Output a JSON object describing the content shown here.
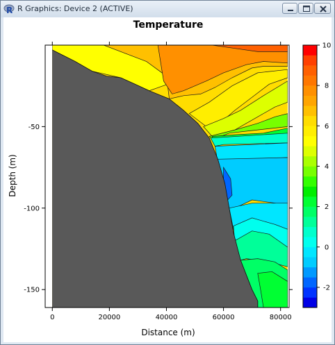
{
  "window": {
    "title": "R Graphics: Device 2 (ACTIVE)",
    "icons": {
      "app": "r-logo-icon",
      "minimize": "minimize-icon",
      "maximize": "maximize-icon",
      "close": "close-icon"
    }
  },
  "chart_data": {
    "type": "filled-contour",
    "title": "Temperature",
    "xlabel": "Distance (m)",
    "ylabel": "Depth (m)",
    "xlim": [
      -2500,
      83000
    ],
    "ylim": [
      -161,
      0
    ],
    "x_ticks": [
      0,
      20000,
      40000,
      60000,
      80000
    ],
    "x_tick_labels": [
      "0",
      "20000",
      "40000",
      "60000",
      "80000"
    ],
    "y_ticks": [
      -50,
      -100,
      -150
    ],
    "y_tick_labels": [
      "-50",
      "-100",
      "-150"
    ],
    "colorbar": {
      "range": [
        -3,
        10
      ],
      "levels": [
        -3,
        -2.5,
        -2,
        -1.5,
        -1,
        -0.5,
        0,
        0.5,
        1,
        1.5,
        2,
        2.5,
        3,
        3.5,
        4,
        4.5,
        5,
        5.5,
        6,
        6.5,
        7,
        7.5,
        8,
        8.5,
        9,
        9.5,
        10
      ],
      "colors": [
        "#0000e6",
        "#0033ff",
        "#0066ff",
        "#0099ff",
        "#00ccff",
        "#00e6ff",
        "#00ffee",
        "#00ffcc",
        "#00ff99",
        "#00ff66",
        "#00ff33",
        "#00ee00",
        "#33ff00",
        "#77ff00",
        "#aaff00",
        "#ddff00",
        "#ffff00",
        "#ffee00",
        "#ffdd00",
        "#ffc000",
        "#ffa500",
        "#ff9000",
        "#ff7700",
        "#ff6000",
        "#ff4000",
        "#ff0000"
      ],
      "ticks": [
        -2,
        0,
        2,
        4,
        6,
        8,
        10
      ],
      "tick_labels": [
        "-2",
        "0",
        "2",
        "4",
        "6",
        "8",
        "10"
      ]
    },
    "bathymetry": {
      "fill": "#595959",
      "profile": [
        [
          0,
          -3
        ],
        [
          8000,
          -10
        ],
        [
          14000,
          -16
        ],
        [
          19000,
          -19
        ],
        [
          24000,
          -20
        ],
        [
          29000,
          -24
        ],
        [
          34000,
          -28
        ],
        [
          41000,
          -33
        ],
        [
          46000,
          -40
        ],
        [
          51000,
          -48
        ],
        [
          55000,
          -57
        ],
        [
          58000,
          -70
        ],
        [
          60500,
          -85
        ],
        [
          62000,
          -100
        ],
        [
          63500,
          -115
        ],
        [
          66000,
          -132
        ],
        [
          70000,
          -150
        ],
        [
          72000,
          -157
        ],
        [
          72000,
          -161
        ],
        [
          0,
          -161
        ]
      ]
    },
    "contour_regions": [
      {
        "level": 5.0,
        "polygon": [
          [
            0,
            -3
          ],
          [
            0,
            0
          ],
          [
            22000,
            0
          ],
          [
            33000,
            -10
          ],
          [
            40000,
            -19
          ],
          [
            42000,
            -23
          ],
          [
            34000,
            -28
          ],
          [
            24000,
            -20
          ],
          [
            14000,
            -16
          ],
          [
            8000,
            -10
          ]
        ]
      },
      {
        "level": 6.5,
        "polygon": [
          [
            18000,
            0
          ],
          [
            82500,
            0
          ],
          [
            82500,
            -13
          ],
          [
            74000,
            -13
          ],
          [
            70000,
            -14
          ],
          [
            63000,
            -20
          ],
          [
            57000,
            -26
          ],
          [
            52000,
            -30
          ],
          [
            46000,
            -31
          ],
          [
            41000,
            -33
          ],
          [
            40000,
            -19
          ],
          [
            33000,
            -10
          ]
        ]
      },
      {
        "level": 7.5,
        "polygon": [
          [
            37000,
            0
          ],
          [
            82500,
            0
          ],
          [
            82500,
            -11
          ],
          [
            74000,
            -10
          ],
          [
            68000,
            -12
          ],
          [
            60000,
            -17
          ],
          [
            54000,
            -22
          ],
          [
            50000,
            -25
          ],
          [
            46000,
            -28
          ],
          [
            42000,
            -30
          ],
          [
            39000,
            -22
          ]
        ]
      },
      {
        "level": 8.5,
        "polygon": [
          [
            56000,
            0
          ],
          [
            82500,
            0
          ],
          [
            82500,
            -4
          ],
          [
            72000,
            -4
          ],
          [
            64000,
            -2
          ]
        ]
      },
      {
        "level": 5.5,
        "polygon": [
          [
            48000,
            -42
          ],
          [
            55000,
            -35
          ],
          [
            63000,
            -25
          ],
          [
            72000,
            -17
          ],
          [
            82500,
            -15
          ],
          [
            82500,
            -20
          ],
          [
            76000,
            -24
          ],
          [
            70000,
            -32
          ],
          [
            64000,
            -40
          ],
          [
            60000,
            -46
          ],
          [
            54000,
            -50
          ]
        ]
      },
      {
        "level": 4.5,
        "polygon": [
          [
            53000,
            -50
          ],
          [
            60000,
            -45
          ],
          [
            66000,
            -40
          ],
          [
            74000,
            -31
          ],
          [
            82500,
            -22
          ],
          [
            82500,
            -35
          ],
          [
            78000,
            -38
          ],
          [
            72000,
            -44
          ],
          [
            64000,
            -52
          ],
          [
            56000,
            -56
          ]
        ]
      },
      {
        "level": 3.5,
        "polygon": [
          [
            55000,
            -56
          ],
          [
            64000,
            -52
          ],
          [
            72000,
            -48
          ],
          [
            78000,
            -44
          ],
          [
            82500,
            -42
          ],
          [
            82500,
            -50
          ],
          [
            72000,
            -52
          ],
          [
            62000,
            -54
          ],
          [
            56000,
            -58
          ]
        ]
      },
      {
        "level": 2.0,
        "polygon": [
          [
            56000,
            -56
          ],
          [
            64000,
            -55
          ],
          [
            74000,
            -54
          ],
          [
            82500,
            -51
          ],
          [
            82500,
            -55
          ],
          [
            56000,
            -58
          ]
        ]
      },
      {
        "level": 0.5,
        "polygon": [
          [
            55500,
            -57
          ],
          [
            82500,
            -54
          ],
          [
            82500,
            -60
          ],
          [
            60000,
            -61
          ],
          [
            57000,
            -62
          ]
        ]
      },
      {
        "level": -0.25,
        "polygon": [
          [
            57000,
            -62
          ],
          [
            82500,
            -60
          ],
          [
            82500,
            -69
          ],
          [
            70000,
            -70
          ],
          [
            58000,
            -72
          ]
        ]
      },
      {
        "level": -1.0,
        "polygon": [
          [
            58000,
            -70
          ],
          [
            82500,
            -69
          ],
          [
            82500,
            -98
          ],
          [
            70000,
            -95
          ],
          [
            64000,
            -100
          ],
          [
            62000,
            -100
          ]
        ]
      },
      {
        "level": -2.0,
        "polygon": [
          [
            60000,
            -75
          ],
          [
            62500,
            -82
          ],
          [
            63000,
            -92
          ],
          [
            61500,
            -95
          ],
          [
            60000,
            -92
          ]
        ]
      },
      {
        "level": -0.5,
        "polygon": [
          [
            62000,
            -100
          ],
          [
            70000,
            -97
          ],
          [
            82500,
            -97
          ],
          [
            82500,
            -113
          ],
          [
            78000,
            -110
          ],
          [
            70000,
            -107
          ],
          [
            63500,
            -113
          ]
        ]
      },
      {
        "level": 0.0,
        "polygon": [
          [
            63500,
            -111
          ],
          [
            70000,
            -106
          ],
          [
            78000,
            -110
          ],
          [
            82500,
            -113
          ],
          [
            82500,
            -124
          ],
          [
            76000,
            -118
          ],
          [
            70000,
            -116
          ],
          [
            64000,
            -122
          ]
        ]
      },
      {
        "level": 1.0,
        "polygon": [
          [
            64000,
            -120
          ],
          [
            70000,
            -114
          ],
          [
            76000,
            -116
          ],
          [
            82500,
            -124
          ],
          [
            82500,
            -136
          ],
          [
            76000,
            -133
          ],
          [
            68000,
            -131
          ],
          [
            66000,
            -132
          ]
        ]
      },
      {
        "level": 1.5,
        "polygon": [
          [
            66000,
            -132
          ],
          [
            72000,
            -131
          ],
          [
            78000,
            -133
          ],
          [
            82500,
            -138
          ],
          [
            82500,
            -161
          ],
          [
            72000,
            -161
          ],
          [
            72000,
            -157
          ],
          [
            70000,
            -150
          ]
        ]
      },
      {
        "level": 2.0,
        "polygon": [
          [
            72000,
            -140
          ],
          [
            77000,
            -139
          ],
          [
            82500,
            -145
          ],
          [
            82500,
            -161
          ],
          [
            74000,
            -161
          ],
          [
            73000,
            -150
          ]
        ]
      }
    ]
  }
}
